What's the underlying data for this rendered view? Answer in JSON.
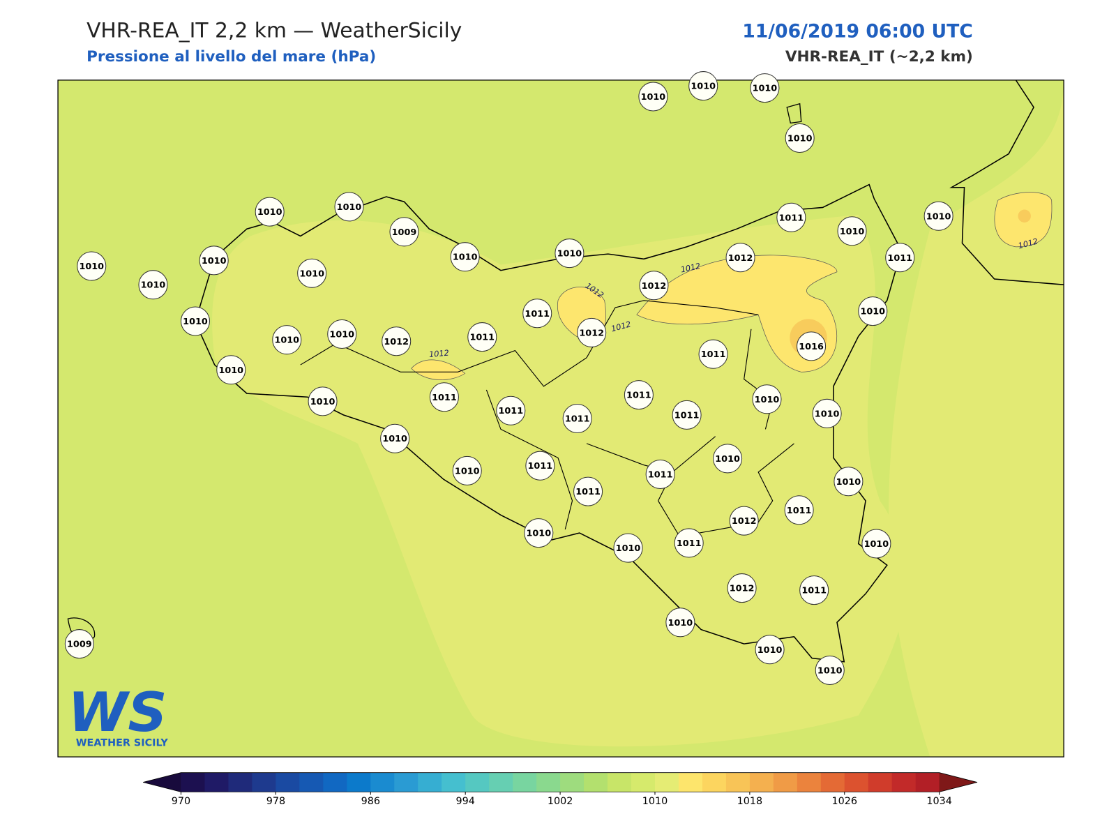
{
  "header": {
    "title": "VHR-REA_IT 2,2 km — WeatherSicily",
    "subtitle": "Pressione al livello del mare (hPa)",
    "datetime": "11/06/2019 06:00 UTC",
    "model": "VHR-REA_IT (~2,2 km)"
  },
  "logo": {
    "mark": "WS",
    "text": "WEATHER SICILY"
  },
  "stations": [
    1010,
    1010,
    1010,
    1010,
    1010,
    1010,
    1009,
    1010,
    1010,
    1010,
    1010,
    1010,
    1010,
    1011,
    1010,
    1010,
    1012,
    1011,
    1012,
    1011,
    1010,
    1010,
    1010,
    1012,
    1011,
    1012,
    1016,
    1010,
    1011,
    1010,
    1010,
    1011,
    1011,
    1011,
    1011,
    1011,
    1010,
    1010,
    1010,
    1010,
    1011,
    1011,
    1011,
    1010,
    1010,
    1012,
    1011,
    1010,
    1010,
    1011,
    1010,
    1012,
    1011,
    1010,
    1010,
    1010,
    1009
  ],
  "contour_labels": [
    1012,
    1012,
    1012,
    1012,
    1012
  ],
  "colorbar": {
    "lim": [
      970,
      1034
    ],
    "step": 2,
    "ticks": [
      970,
      978,
      986,
      994,
      1002,
      1010,
      1018,
      1026,
      1034
    ],
    "colors": [
      "#1c1050",
      "#1f1a66",
      "#1f2a7a",
      "#1e3a8e",
      "#1a4aa2",
      "#1659b3",
      "#1168c2",
      "#0c7acb",
      "#1a8bd0",
      "#2a9bd3",
      "#36aed2",
      "#45bfcf",
      "#55c8c1",
      "#66cfb2",
      "#78d5a0",
      "#8ad98e",
      "#9edc7e",
      "#b3e06e",
      "#c8e568",
      "#d6ea6c",
      "#e5ec74",
      "#fde56c",
      "#fcd55f",
      "#f8c457",
      "#f4b04f",
      "#f09b46",
      "#eb833d",
      "#e46a35",
      "#dc522f",
      "#d03c2b",
      "#c22a29",
      "#b21f26"
    ],
    "under_color": "#180a3c",
    "over_color": "#7f1818"
  }
}
